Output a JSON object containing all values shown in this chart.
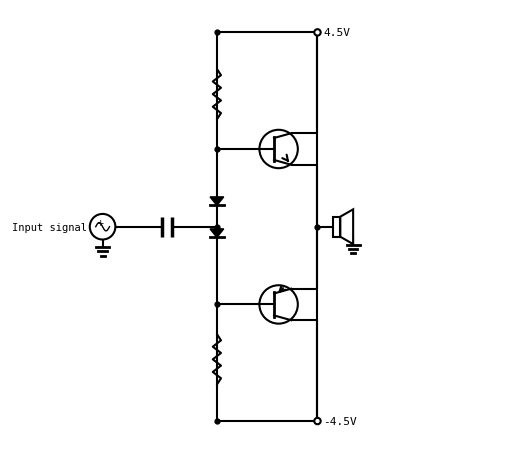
{
  "background": "#ffffff",
  "line_color": "#000000",
  "line_width": 1.5,
  "fig_width": 5.13,
  "fig_height": 4.6,
  "dpi": 100,
  "label_input": "Input signal",
  "label_pos": "4.5V",
  "label_neg": "-4.5V"
}
